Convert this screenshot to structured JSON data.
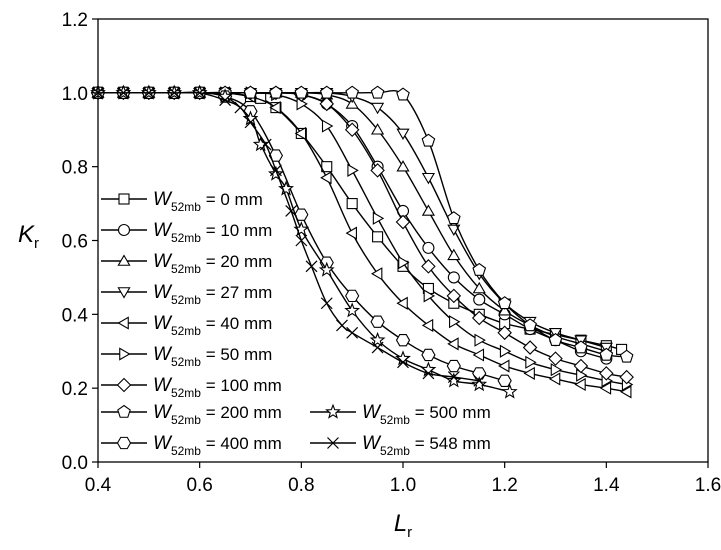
{
  "chart_data": {
    "type": "line",
    "title": "",
    "xlabel": {
      "main": "L",
      "sub": "r"
    },
    "ylabel": {
      "main": "K",
      "sub": "r"
    },
    "xlim": [
      0.4,
      1.6
    ],
    "ylim": [
      0.0,
      1.2
    ],
    "xticks": [
      "0.4",
      "0.6",
      "0.8",
      "1.0",
      "1.2",
      "1.4",
      "1.6"
    ],
    "yticks": [
      "0.0",
      "0.2",
      "0.4",
      "0.6",
      "0.8",
      "1.0",
      "1.2"
    ],
    "grid": false,
    "legend": {
      "position": "left",
      "symbol": "W",
      "subscript": "52mb"
    },
    "series": [
      {
        "name": "= 0 mm",
        "marker": "square",
        "x": [
          0.4,
          0.45,
          0.5,
          0.55,
          0.6,
          0.65,
          0.7,
          0.72,
          0.75,
          0.8,
          0.85,
          0.9,
          0.95,
          1.0,
          1.05,
          1.1,
          1.15,
          1.2,
          1.25,
          1.3,
          1.35,
          1.4,
          1.43
        ],
        "y": [
          1.0,
          1.0,
          1.0,
          1.0,
          1.0,
          1.0,
          0.99,
          0.985,
          0.96,
          0.89,
          0.8,
          0.7,
          0.61,
          0.53,
          0.47,
          0.43,
          0.4,
          0.375,
          0.36,
          0.345,
          0.33,
          0.315,
          0.305
        ]
      },
      {
        "name": "= 10 mm",
        "marker": "circle",
        "x": [
          0.4,
          0.45,
          0.5,
          0.55,
          0.6,
          0.65,
          0.7,
          0.75,
          0.8,
          0.85,
          0.9,
          0.95,
          1.0,
          1.05,
          1.1,
          1.15,
          1.2,
          1.25,
          1.3,
          1.35,
          1.4
        ],
        "y": [
          1.0,
          1.0,
          1.0,
          1.0,
          1.0,
          1.0,
          1.0,
          1.0,
          0.995,
          0.97,
          0.91,
          0.8,
          0.68,
          0.58,
          0.5,
          0.44,
          0.4,
          0.36,
          0.33,
          0.3,
          0.28
        ]
      },
      {
        "name": "= 20 mm",
        "marker": "triangle-up",
        "x": [
          0.4,
          0.45,
          0.5,
          0.55,
          0.6,
          0.65,
          0.7,
          0.75,
          0.8,
          0.85,
          0.9,
          0.95,
          1.0,
          1.05,
          1.1,
          1.15,
          1.2,
          1.25,
          1.3,
          1.35,
          1.4
        ],
        "y": [
          1.0,
          1.0,
          1.0,
          1.0,
          1.0,
          1.0,
          1.0,
          1.0,
          1.0,
          0.995,
          0.97,
          0.9,
          0.8,
          0.68,
          0.56,
          0.47,
          0.41,
          0.37,
          0.34,
          0.32,
          0.3
        ]
      },
      {
        "name": "= 27 mm",
        "marker": "triangle-down",
        "x": [
          0.4,
          0.45,
          0.5,
          0.55,
          0.6,
          0.65,
          0.7,
          0.75,
          0.8,
          0.85,
          0.9,
          0.95,
          1.0,
          1.05,
          1.1,
          1.15,
          1.2,
          1.25,
          1.3,
          1.35,
          1.4
        ],
        "y": [
          1.0,
          1.0,
          1.0,
          1.0,
          1.0,
          1.0,
          1.0,
          1.0,
          1.0,
          1.0,
          0.99,
          0.96,
          0.89,
          0.77,
          0.63,
          0.51,
          0.43,
          0.38,
          0.35,
          0.33,
          0.31
        ]
      },
      {
        "name": "= 40 mm",
        "marker": "triangle-left",
        "x": [
          0.4,
          0.45,
          0.5,
          0.55,
          0.6,
          0.65,
          0.7,
          0.75,
          0.8,
          0.85,
          0.9,
          0.95,
          1.0,
          1.05,
          1.1,
          1.15,
          1.2,
          1.25,
          1.3,
          1.35,
          1.4,
          1.44
        ],
        "y": [
          1.0,
          1.0,
          1.0,
          1.0,
          1.0,
          1.0,
          0.99,
          0.96,
          0.89,
          0.77,
          0.62,
          0.51,
          0.43,
          0.37,
          0.32,
          0.29,
          0.26,
          0.24,
          0.225,
          0.21,
          0.2,
          0.19
        ]
      },
      {
        "name": "= 50 mm",
        "marker": "triangle-right",
        "x": [
          0.4,
          0.45,
          0.5,
          0.55,
          0.6,
          0.65,
          0.7,
          0.75,
          0.8,
          0.85,
          0.9,
          0.95,
          1.0,
          1.05,
          1.1,
          1.15,
          1.2,
          1.25,
          1.3,
          1.35,
          1.4,
          1.44
        ],
        "y": [
          1.0,
          1.0,
          1.0,
          1.0,
          1.0,
          1.0,
          1.0,
          0.995,
          0.97,
          0.91,
          0.79,
          0.66,
          0.54,
          0.45,
          0.38,
          0.33,
          0.3,
          0.27,
          0.25,
          0.235,
          0.22,
          0.21
        ]
      },
      {
        "name": "= 100 mm",
        "marker": "diamond",
        "x": [
          0.4,
          0.45,
          0.5,
          0.55,
          0.6,
          0.65,
          0.7,
          0.75,
          0.8,
          0.85,
          0.9,
          0.95,
          1.0,
          1.05,
          1.1,
          1.15,
          1.2,
          1.25,
          1.3,
          1.35,
          1.4,
          1.44
        ],
        "y": [
          1.0,
          1.0,
          1.0,
          1.0,
          1.0,
          1.0,
          1.0,
          1.0,
          0.995,
          0.97,
          0.9,
          0.79,
          0.65,
          0.53,
          0.45,
          0.39,
          0.35,
          0.31,
          0.28,
          0.26,
          0.24,
          0.23
        ]
      },
      {
        "name": "= 200 mm",
        "marker": "pentagon",
        "x": [
          0.4,
          0.45,
          0.5,
          0.55,
          0.6,
          0.65,
          0.7,
          0.75,
          0.8,
          0.85,
          0.9,
          0.95,
          1.0,
          1.05,
          1.1,
          1.15,
          1.2,
          1.25,
          1.3,
          1.35,
          1.4,
          1.44
        ],
        "y": [
          1.0,
          1.0,
          1.0,
          1.0,
          1.0,
          1.0,
          1.0,
          1.0,
          1.0,
          1.0,
          1.0,
          1.0,
          0.995,
          0.87,
          0.66,
          0.52,
          0.43,
          0.37,
          0.33,
          0.31,
          0.29,
          0.285
        ]
      },
      {
        "name": "= 400 mm",
        "marker": "hexagon",
        "x": [
          0.4,
          0.45,
          0.5,
          0.55,
          0.6,
          0.65,
          0.7,
          0.75,
          0.8,
          0.85,
          0.9,
          0.95,
          1.0,
          1.05,
          1.1,
          1.15,
          1.2
        ],
        "y": [
          1.0,
          1.0,
          1.0,
          1.0,
          1.0,
          0.99,
          0.95,
          0.83,
          0.67,
          0.54,
          0.45,
          0.38,
          0.33,
          0.29,
          0.26,
          0.24,
          0.22
        ]
      },
      {
        "name": "= 500 mm",
        "marker": "star",
        "x": [
          0.4,
          0.45,
          0.5,
          0.55,
          0.6,
          0.65,
          0.7,
          0.72,
          0.75,
          0.77,
          0.8,
          0.85,
          0.9,
          0.95,
          1.0,
          1.05,
          1.1,
          1.15,
          1.21
        ],
        "y": [
          1.0,
          1.0,
          1.0,
          1.0,
          1.0,
          0.99,
          0.93,
          0.86,
          0.78,
          0.74,
          0.63,
          0.52,
          0.41,
          0.33,
          0.28,
          0.25,
          0.22,
          0.21,
          0.19
        ]
      },
      {
        "name": "= 548 mm",
        "marker": "x",
        "x": [
          0.4,
          0.45,
          0.5,
          0.55,
          0.6,
          0.65,
          0.68,
          0.7,
          0.73,
          0.75,
          0.78,
          0.8,
          0.82,
          0.85,
          0.88,
          0.9,
          0.95,
          1.0,
          1.05,
          1.1,
          1.15
        ],
        "y": [
          1.0,
          1.0,
          1.0,
          1.0,
          1.0,
          0.98,
          0.96,
          0.92,
          0.86,
          0.79,
          0.68,
          0.6,
          0.53,
          0.43,
          0.37,
          0.35,
          0.31,
          0.27,
          0.24,
          0.23,
          0.22
        ]
      }
    ]
  }
}
